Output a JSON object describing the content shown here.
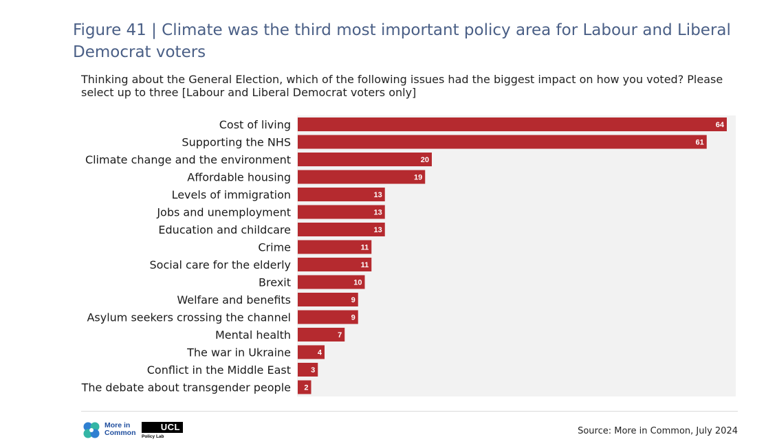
{
  "header": {
    "title": "Figure 41 | Climate was the third most important policy area for Labour and Liberal Democrat voters",
    "subtitle": "Thinking about the General Election, which of the following issues had the biggest impact on how you voted? Please select up to three [Labour and Liberal Democrat voters only]"
  },
  "footer": {
    "source": "Source: More in Common, July 2024",
    "logo_mic_text": "More in Common",
    "logo_ucl_text": "UCL",
    "logo_ucl_sub": "Policy Lab"
  },
  "colors": {
    "bar": "#b52a2f",
    "plot_background": "#f2f2f2",
    "title": "#4a5f86"
  },
  "chart_data": {
    "type": "bar",
    "orientation": "horizontal",
    "categories": [
      "Cost of living",
      "Supporting the NHS",
      "Climate change and the environment",
      "Affordable housing",
      "Levels of immigration",
      "Jobs and unemployment",
      "Education and childcare",
      "Crime",
      "Social care for the elderly",
      "Brexit",
      "Welfare and benefits",
      "Asylum seekers crossing the channel",
      "Mental health",
      "The war in Ukraine",
      "Conflict in the Middle East",
      "The debate about transgender people"
    ],
    "values": [
      64,
      61,
      20,
      19,
      13,
      13,
      13,
      11,
      11,
      10,
      9,
      9,
      7,
      4,
      3,
      2
    ],
    "xlim": [
      0,
      65
    ],
    "grid": false,
    "data_labels": true
  }
}
